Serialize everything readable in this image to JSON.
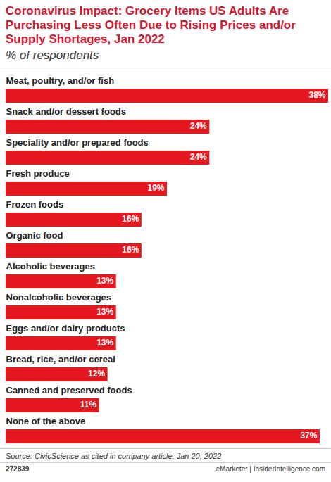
{
  "chart_data": {
    "type": "bar",
    "orientation": "horizontal",
    "title": "Coronavirus Impact: Grocery Items US Adults Are Purchasing Less Often Due to Rising Prices and/or Supply Shortages, Jan 2022",
    "subtitle": "% of respondents",
    "categories": [
      "Meat, poultry, and/or fish",
      "Snack and/or dessert foods",
      "Speciality and/or prepared foods",
      "Fresh produce",
      "Frozen foods",
      "Organic food",
      "Alcoholic beverages",
      "Nonalcoholic beverages",
      "Eggs and/or dairy products",
      "Bread, rice, and/or cereal",
      "Canned and preserved foods",
      "None of the above"
    ],
    "values": [
      38,
      24,
      24,
      19,
      16,
      16,
      13,
      13,
      13,
      12,
      11,
      37
    ],
    "value_labels": [
      "38%",
      "24%",
      "24%",
      "19%",
      "16%",
      "16%",
      "13%",
      "13%",
      "13%",
      "12%",
      "11%",
      "37%"
    ],
    "color": "#e5171f",
    "data_labels": true,
    "tick_labels": "y",
    "source": "Source: CivicScience as cited in company article, Jan 20, 2022",
    "footer_id": "272839",
    "footer_brand": "eMarketer | InsiderIntelligence.com"
  }
}
